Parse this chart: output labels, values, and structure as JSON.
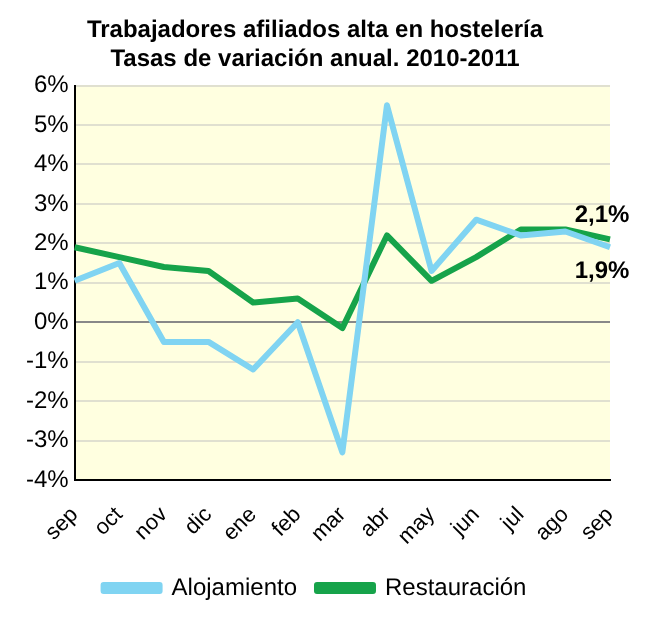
{
  "chart_data": {
    "type": "line",
    "title": "Trabajadores afiliados alta en hostelería\nTasas de variación anual. 2010-2011",
    "categories": [
      "sep",
      "oct",
      "nov",
      "dic",
      "ene",
      "feb",
      "mar",
      "abr",
      "may",
      "jun",
      "jul",
      "ago",
      "sep"
    ],
    "series": [
      {
        "name": "Alojamiento",
        "color": "#80d4f2",
        "values": [
          1.05,
          1.5,
          -0.5,
          -0.5,
          -1.2,
          0,
          -3.3,
          5.5,
          1.3,
          2.6,
          2.2,
          2.3,
          1.9
        ],
        "value_labels": [
          null,
          null,
          null,
          null,
          null,
          null,
          null,
          null,
          null,
          null,
          null,
          null,
          "1,9%"
        ]
      },
      {
        "name": "Restauración",
        "color": "#16a34a",
        "values": [
          1.9,
          1.65,
          1.4,
          1.3,
          0.5,
          0.6,
          -0.15,
          2.2,
          1.05,
          1.65,
          2.35,
          2.35,
          2.1
        ],
        "value_labels": [
          null,
          null,
          null,
          null,
          null,
          null,
          null,
          null,
          null,
          null,
          null,
          null,
          "2,1%"
        ]
      }
    ],
    "ylim": [
      -4,
      6
    ],
    "yticks": [
      {
        "value": -4,
        "label": "-4%"
      },
      {
        "value": -3,
        "label": "-3%"
      },
      {
        "value": -2,
        "label": "-2%"
      },
      {
        "value": -1,
        "label": "-1%"
      },
      {
        "value": 0,
        "label": "0%"
      },
      {
        "value": 1,
        "label": "1%"
      },
      {
        "value": 2,
        "label": "2%"
      },
      {
        "value": 3,
        "label": "3%"
      },
      {
        "value": 4,
        "label": "4%"
      },
      {
        "value": 5,
        "label": "5%"
      },
      {
        "value": 6,
        "label": "6%"
      }
    ],
    "grid": "y",
    "legend": "bottom",
    "marker": "none",
    "line_style": "solid"
  }
}
